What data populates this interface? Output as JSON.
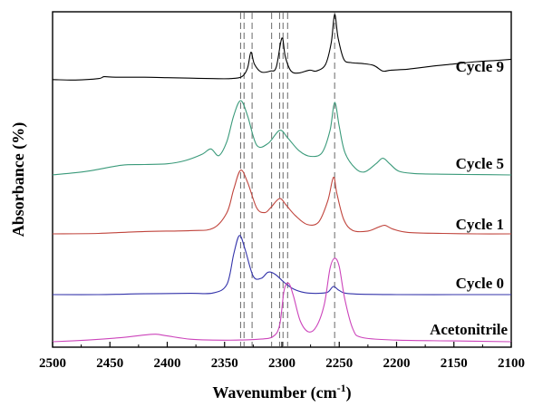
{
  "chart_data": {
    "type": "line",
    "xlabel": "Wavenumber",
    "xlabel_unit": "(cm",
    "xlabel_unit_sup": "-1",
    "xlabel_unit_close": ")",
    "ylabel": "Absorbance (%)",
    "xlim": [
      2500,
      2100
    ],
    "x_reversed": true,
    "x_ticks": [
      2500,
      2450,
      2400,
      2350,
      2300,
      2250,
      2200,
      2150,
      2100
    ],
    "y_ticks_shown": false,
    "grid": false,
    "reference_lines_x": [
      2336,
      2333,
      2326,
      2309,
      2302,
      2299,
      2295,
      2254
    ],
    "series": [
      {
        "name": "Cycle 9",
        "color": "#000000",
        "points": [
          [
            2500,
            0.62
          ],
          [
            2480,
            0.61
          ],
          [
            2460,
            0.64
          ],
          [
            2455,
            0.68
          ],
          [
            2445,
            0.67
          ],
          [
            2420,
            0.67
          ],
          [
            2400,
            0.66
          ],
          [
            2380,
            0.65
          ],
          [
            2360,
            0.64
          ],
          [
            2345,
            0.64
          ],
          [
            2335,
            0.68
          ],
          [
            2330,
            0.86
          ],
          [
            2327,
            1.2
          ],
          [
            2324,
            0.95
          ],
          [
            2318,
            0.78
          ],
          [
            2310,
            0.8
          ],
          [
            2305,
            0.88
          ],
          [
            2300,
            1.5
          ],
          [
            2297,
            1.1
          ],
          [
            2292,
            0.8
          ],
          [
            2285,
            0.76
          ],
          [
            2276,
            0.82
          ],
          [
            2270,
            0.8
          ],
          [
            2262,
            0.94
          ],
          [
            2257,
            1.4
          ],
          [
            2254,
            2.0
          ],
          [
            2251,
            1.5
          ],
          [
            2246,
            1.05
          ],
          [
            2240,
            0.98
          ],
          [
            2230,
            0.96
          ],
          [
            2220,
            0.92
          ],
          [
            2212,
            0.8
          ],
          [
            2205,
            0.82
          ],
          [
            2190,
            0.84
          ],
          [
            2170,
            0.9
          ],
          [
            2150,
            0.95
          ],
          [
            2130,
            1.0
          ],
          [
            2110,
            1.03
          ],
          [
            2100,
            1.05
          ]
        ]
      },
      {
        "name": "Cycle 5",
        "color": "#3a9a7a",
        "points": [
          [
            2500,
            0.0
          ],
          [
            2470,
            0.1
          ],
          [
            2440,
            0.26
          ],
          [
            2420,
            0.28
          ],
          [
            2400,
            0.3
          ],
          [
            2385,
            0.38
          ],
          [
            2370,
            0.55
          ],
          [
            2362,
            0.7
          ],
          [
            2355,
            0.52
          ],
          [
            2348,
            0.9
          ],
          [
            2342,
            1.6
          ],
          [
            2336,
            2.0
          ],
          [
            2330,
            1.6
          ],
          [
            2322,
            0.8
          ],
          [
            2312,
            0.85
          ],
          [
            2302,
            1.2
          ],
          [
            2295,
            1.0
          ],
          [
            2285,
            0.65
          ],
          [
            2275,
            0.5
          ],
          [
            2265,
            0.6
          ],
          [
            2258,
            1.2
          ],
          [
            2254,
            1.95
          ],
          [
            2250,
            1.3
          ],
          [
            2245,
            0.6
          ],
          [
            2236,
            0.18
          ],
          [
            2228,
            0.08
          ],
          [
            2218,
            0.3
          ],
          [
            2212,
            0.45
          ],
          [
            2206,
            0.3
          ],
          [
            2198,
            0.1
          ],
          [
            2185,
            0.04
          ],
          [
            2160,
            0.02
          ],
          [
            2130,
            0.01
          ],
          [
            2100,
            0.0
          ]
        ]
      },
      {
        "name": "Cycle 1",
        "color": "#c0443c",
        "points": [
          [
            2500,
            0.0
          ],
          [
            2460,
            0.01
          ],
          [
            2420,
            0.05
          ],
          [
            2380,
            0.07
          ],
          [
            2360,
            0.12
          ],
          [
            2348,
            0.45
          ],
          [
            2342,
            0.95
          ],
          [
            2336,
            1.35
          ],
          [
            2330,
            1.1
          ],
          [
            2322,
            0.55
          ],
          [
            2315,
            0.45
          ],
          [
            2310,
            0.55
          ],
          [
            2302,
            0.75
          ],
          [
            2296,
            0.6
          ],
          [
            2288,
            0.38
          ],
          [
            2278,
            0.2
          ],
          [
            2268,
            0.25
          ],
          [
            2260,
            0.7
          ],
          [
            2255,
            1.2
          ],
          [
            2252,
            0.85
          ],
          [
            2246,
            0.3
          ],
          [
            2238,
            0.07
          ],
          [
            2225,
            0.06
          ],
          [
            2215,
            0.15
          ],
          [
            2210,
            0.18
          ],
          [
            2203,
            0.1
          ],
          [
            2190,
            0.03
          ],
          [
            2160,
            0.01
          ],
          [
            2130,
            0.0
          ],
          [
            2100,
            0.0
          ]
        ]
      },
      {
        "name": "Cycle 0",
        "color": "#3333aa",
        "points": [
          [
            2500,
            0.0
          ],
          [
            2460,
            0.0
          ],
          [
            2420,
            0.02
          ],
          [
            2380,
            0.03
          ],
          [
            2360,
            0.04
          ],
          [
            2348,
            0.25
          ],
          [
            2342,
            1.0
          ],
          [
            2337,
            1.45
          ],
          [
            2332,
            1.1
          ],
          [
            2325,
            0.45
          ],
          [
            2318,
            0.4
          ],
          [
            2312,
            0.55
          ],
          [
            2306,
            0.5
          ],
          [
            2298,
            0.3
          ],
          [
            2290,
            0.14
          ],
          [
            2280,
            0.05
          ],
          [
            2268,
            0.03
          ],
          [
            2260,
            0.06
          ],
          [
            2255,
            0.2
          ],
          [
            2250,
            0.1
          ],
          [
            2240,
            0.02
          ],
          [
            2200,
            0.0
          ],
          [
            2150,
            0.0
          ],
          [
            2100,
            0.0
          ]
        ]
      },
      {
        "name": "Acetonitrile",
        "color": "#cc44bb",
        "points": [
          [
            2500,
            0.0
          ],
          [
            2470,
            0.02
          ],
          [
            2440,
            0.05
          ],
          [
            2420,
            0.08
          ],
          [
            2410,
            0.09
          ],
          [
            2400,
            0.07
          ],
          [
            2380,
            0.03
          ],
          [
            2360,
            0.02
          ],
          [
            2340,
            0.02
          ],
          [
            2320,
            0.03
          ],
          [
            2308,
            0.06
          ],
          [
            2302,
            0.2
          ],
          [
            2298,
            0.62
          ],
          [
            2294,
            0.7
          ],
          [
            2290,
            0.55
          ],
          [
            2284,
            0.25
          ],
          [
            2277,
            0.12
          ],
          [
            2270,
            0.18
          ],
          [
            2263,
            0.45
          ],
          [
            2258,
            0.88
          ],
          [
            2254,
            1.0
          ],
          [
            2250,
            0.9
          ],
          [
            2245,
            0.5
          ],
          [
            2238,
            0.15
          ],
          [
            2230,
            0.05
          ],
          [
            2200,
            0.02
          ],
          [
            2150,
            0.01
          ],
          [
            2100,
            0.0
          ]
        ]
      }
    ]
  }
}
